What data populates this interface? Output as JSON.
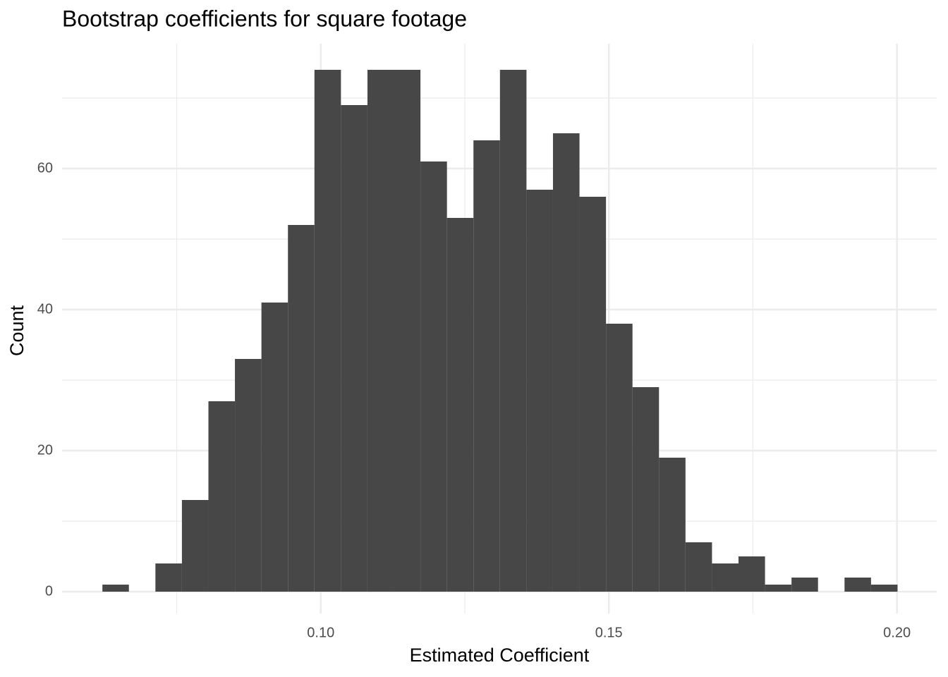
{
  "chart_data": {
    "type": "histogram",
    "title": "Bootstrap coefficients for square footage",
    "x_label": "Estimated Coefficient",
    "y_label": "Count",
    "bins": [
      0.0621,
      0.0667,
      0.0713,
      0.0759,
      0.0805,
      0.0851,
      0.0897,
      0.0943,
      0.0989,
      0.1035,
      0.1081,
      0.1127,
      0.1173,
      0.1219,
      0.1265,
      0.1311,
      0.1357,
      0.1403,
      0.1449,
      0.1495,
      0.1541,
      0.1587,
      0.1633,
      0.1679,
      0.1725,
      0.1771,
      0.1817,
      0.1863,
      0.1909,
      0.1955,
      0.2001
    ],
    "values": [
      1,
      0,
      4,
      13,
      27,
      33,
      41,
      52,
      74,
      69,
      74,
      74,
      61,
      53,
      64,
      74,
      57,
      65,
      56,
      38,
      29,
      19,
      7,
      4,
      5,
      1,
      2,
      0,
      2,
      1
    ],
    "color": "#474747",
    "xlim": [
      0.0551,
      0.2069
    ],
    "xticks": [
      {
        "value": 0.1,
        "label": "0.10"
      },
      {
        "value": 0.15,
        "label": "0.15"
      },
      {
        "value": 0.2,
        "label": "0.20"
      }
    ],
    "x_minor_ticks": [
      0.075,
      0.125,
      0.175
    ],
    "ylim": [
      -3.1,
      77.7
    ],
    "yticks": [
      0,
      20,
      40,
      60
    ],
    "y_minor_ticks": [
      10,
      30,
      50,
      70
    ],
    "grid": true
  }
}
